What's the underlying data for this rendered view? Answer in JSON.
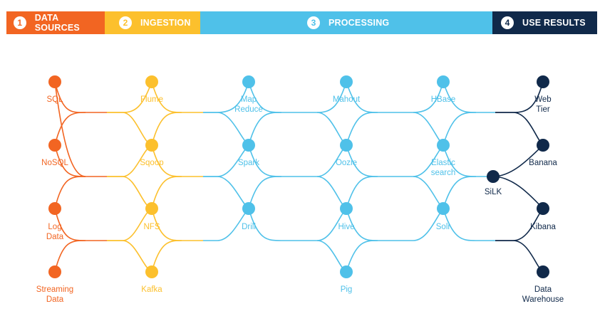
{
  "phases": [
    {
      "num": "1",
      "label": "DATA SOURCES",
      "color": "#f26522"
    },
    {
      "num": "2",
      "label": "INGESTION",
      "color": "#fcc02d"
    },
    {
      "num": "3",
      "label": "PROCESSING",
      "color": "#4fc1e9"
    },
    {
      "num": "4",
      "label": "USE RESULTS",
      "color": "#10294a"
    }
  ],
  "columns": {
    "data_sources": [
      {
        "id": "sql",
        "lines": [
          "SQL"
        ]
      },
      {
        "id": "nosql",
        "lines": [
          "NoSQL"
        ]
      },
      {
        "id": "logdata",
        "lines": [
          "Log",
          "Data"
        ]
      },
      {
        "id": "streaming",
        "lines": [
          "Streaming",
          "Data"
        ]
      }
    ],
    "ingestion": [
      {
        "id": "flume",
        "lines": [
          "Flume"
        ]
      },
      {
        "id": "sqoop",
        "lines": [
          "Sqoop"
        ]
      },
      {
        "id": "nfs",
        "lines": [
          "NFS"
        ]
      },
      {
        "id": "kafka",
        "lines": [
          "Kafka"
        ]
      }
    ],
    "processing_a": [
      {
        "id": "mapreduce",
        "lines": [
          "Map",
          "Reduce"
        ]
      },
      {
        "id": "spark",
        "lines": [
          "Spark"
        ]
      },
      {
        "id": "drill",
        "lines": [
          "Drill"
        ]
      }
    ],
    "processing_b": [
      {
        "id": "mahout",
        "lines": [
          "Mahout"
        ]
      },
      {
        "id": "oozie",
        "lines": [
          "Oozie"
        ]
      },
      {
        "id": "hive",
        "lines": [
          "Hive"
        ]
      },
      {
        "id": "pig",
        "lines": [
          "Pig"
        ]
      }
    ],
    "processing_c": [
      {
        "id": "hbase",
        "lines": [
          "HBase"
        ]
      },
      {
        "id": "elastic",
        "lines": [
          "Elastic",
          "search"
        ]
      },
      {
        "id": "solr",
        "lines": [
          "Solr"
        ]
      }
    ],
    "silk": {
      "id": "silk",
      "lines": [
        "SiLK"
      ]
    },
    "use_results": [
      {
        "id": "webtier",
        "lines": [
          "Web",
          "Tier"
        ]
      },
      {
        "id": "banana",
        "lines": [
          "Banana"
        ]
      },
      {
        "id": "kibana",
        "lines": [
          "Kibana"
        ]
      },
      {
        "id": "datawarehouse",
        "lines": [
          "Data",
          "Warehouse"
        ]
      }
    ]
  }
}
